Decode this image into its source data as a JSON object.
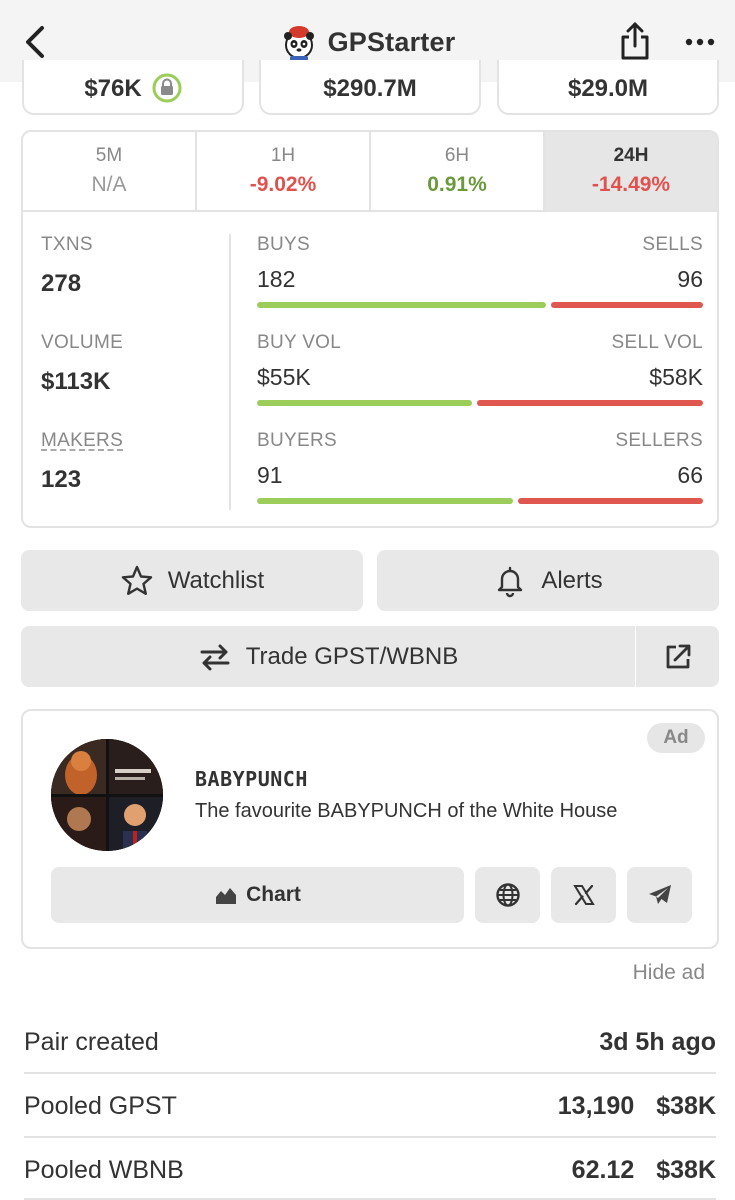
{
  "header": {
    "title": "GPStarter",
    "back_icon": "chevron-left-icon",
    "share_icon": "share-icon",
    "more_icon": "more-horizontal-icon"
  },
  "top_stats": [
    {
      "value": "$76K",
      "icon": "lock-icon"
    },
    {
      "value": "$290.7M"
    },
    {
      "value": "$29.0M"
    }
  ],
  "timeframes": [
    {
      "label": "5M",
      "value": "N/A",
      "tone": "neutral"
    },
    {
      "label": "1H",
      "value": "-9.02%",
      "tone": "neg"
    },
    {
      "label": "6H",
      "value": "0.91%",
      "tone": "pos"
    },
    {
      "label": "24H",
      "value": "-14.49%",
      "tone": "neg",
      "active": true
    }
  ],
  "metrics": {
    "txns": {
      "label": "TXNS",
      "value": "278"
    },
    "volume": {
      "label": "VOLUME",
      "value": "$113K"
    },
    "makers": {
      "label": "MAKERS",
      "value": "123"
    },
    "buys_sells": {
      "left_label": "BUYS",
      "right_label": "SELLS",
      "left_value": "182",
      "right_value": "96",
      "buy_fraction": 0.655
    },
    "vol": {
      "left_label": "BUY VOL",
      "right_label": "SELL VOL",
      "left_value": "$55K",
      "right_value": "$58K",
      "buy_fraction": 0.487
    },
    "buyers_sellers": {
      "left_label": "BUYERS",
      "right_label": "SELLERS",
      "left_value": "91",
      "right_value": "66",
      "buy_fraction": 0.58
    }
  },
  "buttons": {
    "watchlist": "Watchlist",
    "alerts": "Alerts",
    "trade": "Trade GPST/WBNB"
  },
  "ad": {
    "badge": "Ad",
    "name": "BABYPUNCH",
    "description": "The favourite BABYPUNCH of the White House",
    "chart_button": "Chart",
    "hide_label": "Hide ad"
  },
  "info": {
    "pair_created": {
      "label": "Pair created",
      "value": "3d 5h ago"
    },
    "pooled_gpst": {
      "label": "Pooled GPST",
      "amount": "13,190",
      "usd": "$38K"
    },
    "pooled_wbnb": {
      "label": "Pooled WBNB",
      "amount": "62.12",
      "usd": "$38K"
    }
  },
  "colors": {
    "positive": "#6a9a3b",
    "negative": "#e0524e",
    "buy_bar": "#9ccd5b",
    "sell_bar": "#e0574f"
  }
}
